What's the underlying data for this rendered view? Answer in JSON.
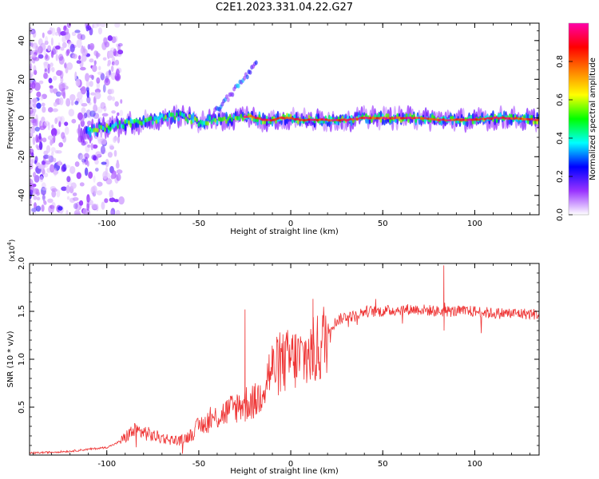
{
  "figure": {
    "title": "C2E1.2023.331.04.22.G27"
  },
  "chart_data": [
    {
      "type": "heatmap",
      "title": "C2E1.2023.331.04.22.G27",
      "xlabel": "Height of straight line (km)",
      "ylabel": "Frequency (Hz)",
      "xlim": [
        -142,
        135
      ],
      "ylim": [
        -50,
        49
      ],
      "xticks": [
        -100,
        -50,
        0,
        50,
        100
      ],
      "xtick_labels": [
        "-100",
        "-50",
        "0",
        "50",
        "100"
      ],
      "yticks": [
        -40,
        -20,
        0,
        20,
        40
      ],
      "ytick_labels": [
        "-40",
        "-20",
        "0",
        "20",
        "40"
      ],
      "colorbar": {
        "label": "Normalized spectral amplitude",
        "range": [
          0,
          1
        ],
        "ticks": [
          0.0,
          0.2,
          0.4,
          0.6,
          0.8
        ],
        "tick_labels": [
          "0.0",
          "0.2",
          "0.4",
          "0.6",
          "0.8"
        ],
        "colormap": [
          "#ffffff",
          "#9933ff",
          "#0000ff",
          "#00ffff",
          "#00ff00",
          "#ffff00",
          "#ff8000",
          "#ff0000",
          "#ff00aa"
        ]
      },
      "signal_track": {
        "x": [
          -110,
          -100,
          -90,
          -80,
          -70,
          -60,
          -50,
          -40,
          -30,
          -22,
          -15,
          -10,
          -5,
          0,
          5,
          10,
          20,
          30,
          40,
          50,
          60,
          70,
          80,
          90,
          100,
          110,
          120,
          135
        ],
        "frequency": [
          -7,
          -5,
          -3,
          -2,
          0,
          1,
          -2,
          -1,
          0,
          1,
          -1,
          -1,
          0,
          0,
          -1,
          -1,
          -1,
          -1,
          0,
          0,
          0,
          0,
          -1,
          -1,
          -1,
          0,
          0,
          -1
        ]
      },
      "noise_region": {
        "x_range": [
          -142,
          -100
        ],
        "frequency_range": [
          -50,
          49
        ]
      }
    },
    {
      "type": "line",
      "xlabel": "Height of straight line (km)",
      "ylabel": "SNR (10 * v/v)",
      "y_multiplier": "(x10",
      "y_multiplier_exp": "4",
      "y_multiplier_close": ")",
      "xlim": [
        -142,
        135
      ],
      "ylim": [
        0,
        2.0
      ],
      "xticks": [
        -100,
        -50,
        0,
        50,
        100
      ],
      "xtick_labels": [
        "-100",
        "-50",
        "0",
        "50",
        "100"
      ],
      "yticks": [
        0.5,
        1.0,
        1.5,
        2.0
      ],
      "ytick_labels": [
        "0.5",
        "1.0",
        "1.5",
        "2.0"
      ],
      "series": [
        {
          "name": "SNR",
          "color": "#ee3333",
          "x": [
            -142,
            -130,
            -120,
            -110,
            -100,
            -95,
            -90,
            -88,
            -85,
            -80,
            -75,
            -70,
            -65,
            -60,
            -55,
            -50,
            -45,
            -40,
            -35,
            -30,
            -25,
            -20,
            -17,
            -15,
            -12,
            -10,
            -5,
            0,
            5,
            10,
            15,
            18,
            20,
            25,
            30,
            35,
            40,
            50,
            60,
            70,
            80,
            90,
            100,
            110,
            120,
            135
          ],
          "y": [
            0.02,
            0.03,
            0.04,
            0.06,
            0.08,
            0.12,
            0.18,
            0.22,
            0.25,
            0.24,
            0.2,
            0.18,
            0.16,
            0.15,
            0.2,
            0.3,
            0.35,
            0.4,
            0.45,
            0.5,
            0.55,
            0.55,
            0.6,
            0.75,
            0.85,
            0.9,
            0.95,
            1.0,
            1.0,
            1.05,
            1.1,
            1.2,
            1.3,
            1.4,
            1.45,
            1.45,
            1.5,
            1.5,
            1.52,
            1.52,
            1.5,
            1.5,
            1.5,
            1.48,
            1.48,
            1.47
          ]
        }
      ],
      "spikes": [
        {
          "x": -25,
          "y": 1.52
        },
        {
          "x": 12,
          "y": 1.63
        },
        {
          "x": 83,
          "y": 1.98
        }
      ]
    }
  ]
}
